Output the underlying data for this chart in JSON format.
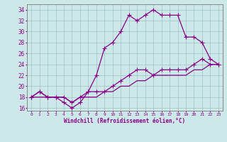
{
  "xlabel": "Windchill (Refroidissement éolien,°C)",
  "background_color": "#cce8e8",
  "line_color": "#880088",
  "xlim": [
    -0.5,
    23.5
  ],
  "ylim": [
    15.5,
    35.0
  ],
  "xticks": [
    0,
    1,
    2,
    3,
    4,
    5,
    6,
    7,
    8,
    9,
    10,
    11,
    12,
    13,
    14,
    15,
    16,
    17,
    18,
    19,
    20,
    21,
    22,
    23
  ],
  "yticks": [
    16,
    18,
    20,
    22,
    24,
    26,
    28,
    30,
    32,
    34
  ],
  "line1_x": [
    0,
    1,
    2,
    3,
    4,
    5,
    6,
    7,
    8,
    9,
    10,
    11,
    12,
    13,
    14,
    15,
    16,
    17,
    18,
    19,
    20,
    21,
    22,
    23
  ],
  "line1_y": [
    18,
    19,
    18,
    18,
    18,
    17,
    18,
    19,
    19,
    19,
    20,
    21,
    22,
    23,
    23,
    22,
    23,
    23,
    23,
    23,
    24,
    25,
    24,
    24
  ],
  "line2_x": [
    0,
    1,
    2,
    3,
    4,
    5,
    6,
    7,
    8,
    9,
    10,
    11,
    12,
    13,
    14,
    15,
    16,
    17,
    18,
    19,
    20,
    21,
    22,
    23
  ],
  "line2_y": [
    18,
    18,
    18,
    18,
    18,
    17,
    18,
    18,
    18,
    19,
    19,
    20,
    20,
    21,
    21,
    22,
    22,
    22,
    22,
    22,
    23,
    23,
    24,
    24
  ],
  "line3_x": [
    0,
    1,
    2,
    3,
    4,
    5,
    6,
    7,
    8,
    9,
    10,
    11,
    12,
    13,
    14,
    15,
    16,
    17,
    18,
    19,
    20,
    21,
    22,
    23
  ],
  "line3_y": [
    18,
    19,
    18,
    18,
    17,
    16,
    17,
    19,
    22,
    27,
    28,
    30,
    33,
    32,
    33,
    34,
    33,
    33,
    33,
    29,
    29,
    28,
    25,
    24
  ],
  "markersize": 3,
  "linewidth": 0.9
}
